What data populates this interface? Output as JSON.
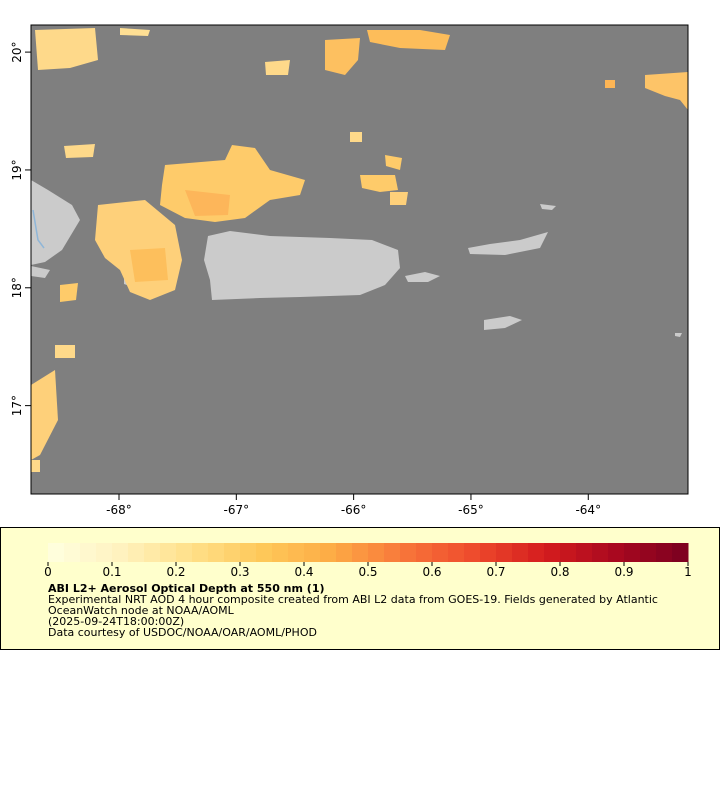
{
  "map": {
    "xlim": [
      -68.75,
      -63.15
    ],
    "ylim": [
      16.25,
      20.23
    ],
    "xticks": [
      {
        "value": -68,
        "label": "-68°"
      },
      {
        "value": -67,
        "label": "-67°"
      },
      {
        "value": -66,
        "label": "-66°"
      },
      {
        "value": -65,
        "label": "-65°"
      },
      {
        "value": -64,
        "label": "-64°"
      }
    ],
    "yticks": [
      {
        "value": 20,
        "label": "20°"
      },
      {
        "value": 19,
        "label": "19°"
      },
      {
        "value": 18,
        "label": "18°"
      },
      {
        "value": 17,
        "label": "17°"
      }
    ]
  },
  "colorbar": {
    "ticks": [
      0,
      0.1,
      0.2,
      0.3,
      0.4,
      0.5,
      0.6,
      0.7,
      0.8,
      0.9,
      1
    ],
    "colormap": [
      "#ffffe0",
      "#fff2c0",
      "#ffe08a",
      "#fec95a",
      "#fdab45",
      "#f8763a",
      "#ee4a2c",
      "#d41c1e",
      "#a8081f",
      "#7a0020"
    ]
  },
  "legend": {
    "title": "ABI L2+ Aerosol Optical Depth at 550 nm (1)",
    "description": "Experimental NRT AOD 4 hour composite created from ABI L2 data from GOES-19. Fields generated by Atlantic OceanWatch node at NOAA/AOML",
    "time": "(2025-09-24T18:00:00Z)",
    "credit": "Data courtesy of USDOC/NOAA/OAR/AOML/PHOD"
  }
}
